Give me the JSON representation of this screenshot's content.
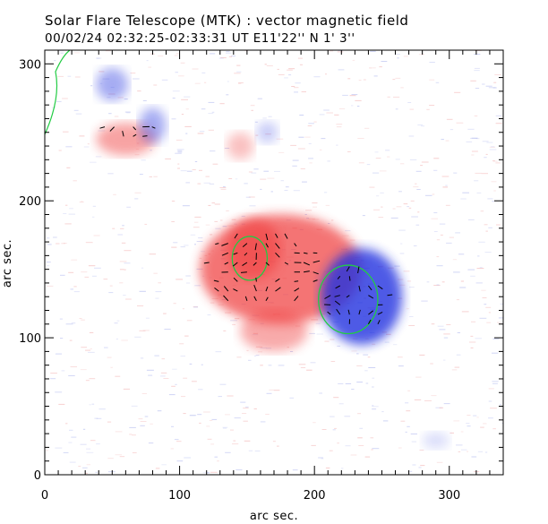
{
  "header": {
    "line1": "Solar Flare Telescope (MTK) : vector magnetic field",
    "line2": "00/02/24   02:32:25-02:33:31 UT     E11'22''  N 1' 3''"
  },
  "axes": {
    "xlabel": "arc sec.",
    "ylabel": "arc sec.",
    "xlim": [
      0,
      340
    ],
    "ylim": [
      0,
      310
    ],
    "x_ticks": [
      0,
      100,
      200,
      300
    ],
    "y_ticks": [
      0,
      100,
      200,
      300
    ]
  },
  "colors": {
    "positive": "#f04040",
    "negative": "#2030e0",
    "contour": "#22cc44",
    "vector": "#000000"
  },
  "regions": [
    {
      "name": "positive-main",
      "polarity": "positive",
      "cx": 175,
      "cy": 150,
      "rx": 60,
      "ry": 40,
      "strength": 0.9
    },
    {
      "name": "positive-core",
      "polarity": "positive",
      "cx": 155,
      "cy": 165,
      "rx": 20,
      "ry": 22,
      "strength": 0.75
    },
    {
      "name": "positive-south",
      "polarity": "positive",
      "cx": 170,
      "cy": 105,
      "rx": 25,
      "ry": 15,
      "strength": 0.55
    },
    {
      "name": "positive-northwest",
      "polarity": "positive",
      "cx": 60,
      "cy": 245,
      "rx": 22,
      "ry": 12,
      "strength": 0.6
    },
    {
      "name": "positive-north",
      "polarity": "positive",
      "cx": 145,
      "cy": 240,
      "rx": 10,
      "ry": 10,
      "strength": 0.4
    },
    {
      "name": "negative-main",
      "polarity": "negative",
      "cx": 235,
      "cy": 130,
      "rx": 30,
      "ry": 35,
      "strength": 1.0
    },
    {
      "name": "negative-north",
      "polarity": "negative",
      "cx": 50,
      "cy": 285,
      "rx": 12,
      "ry": 12,
      "strength": 0.5
    },
    {
      "name": "negative-north2",
      "polarity": "negative",
      "cx": 80,
      "cy": 255,
      "rx": 10,
      "ry": 13,
      "strength": 0.5
    },
    {
      "name": "negative-west",
      "polarity": "negative",
      "cx": 165,
      "cy": 250,
      "rx": 8,
      "ry": 8,
      "strength": 0.3
    },
    {
      "name": "negative-southwest",
      "polarity": "negative",
      "cx": 290,
      "cy": 25,
      "rx": 10,
      "ry": 6,
      "strength": 0.2
    }
  ],
  "contours": [
    {
      "name": "contour-positive-core",
      "cx": 152,
      "cy": 158,
      "rx": 13,
      "ry": 16
    },
    {
      "name": "contour-negative-core",
      "cx": 225,
      "cy": 128,
      "rx": 22,
      "ry": 25
    }
  ],
  "vector_fields": [
    {
      "name": "vectors-positive",
      "cx": 160,
      "cy": 150,
      "w": 90,
      "h": 60,
      "spacing": 7
    },
    {
      "name": "vectors-negative",
      "cx": 230,
      "cy": 128,
      "w": 50,
      "h": 50,
      "spacing": 7
    },
    {
      "name": "vectors-northwest",
      "cx": 60,
      "cy": 250,
      "w": 45,
      "h": 20,
      "spacing": 7
    }
  ]
}
